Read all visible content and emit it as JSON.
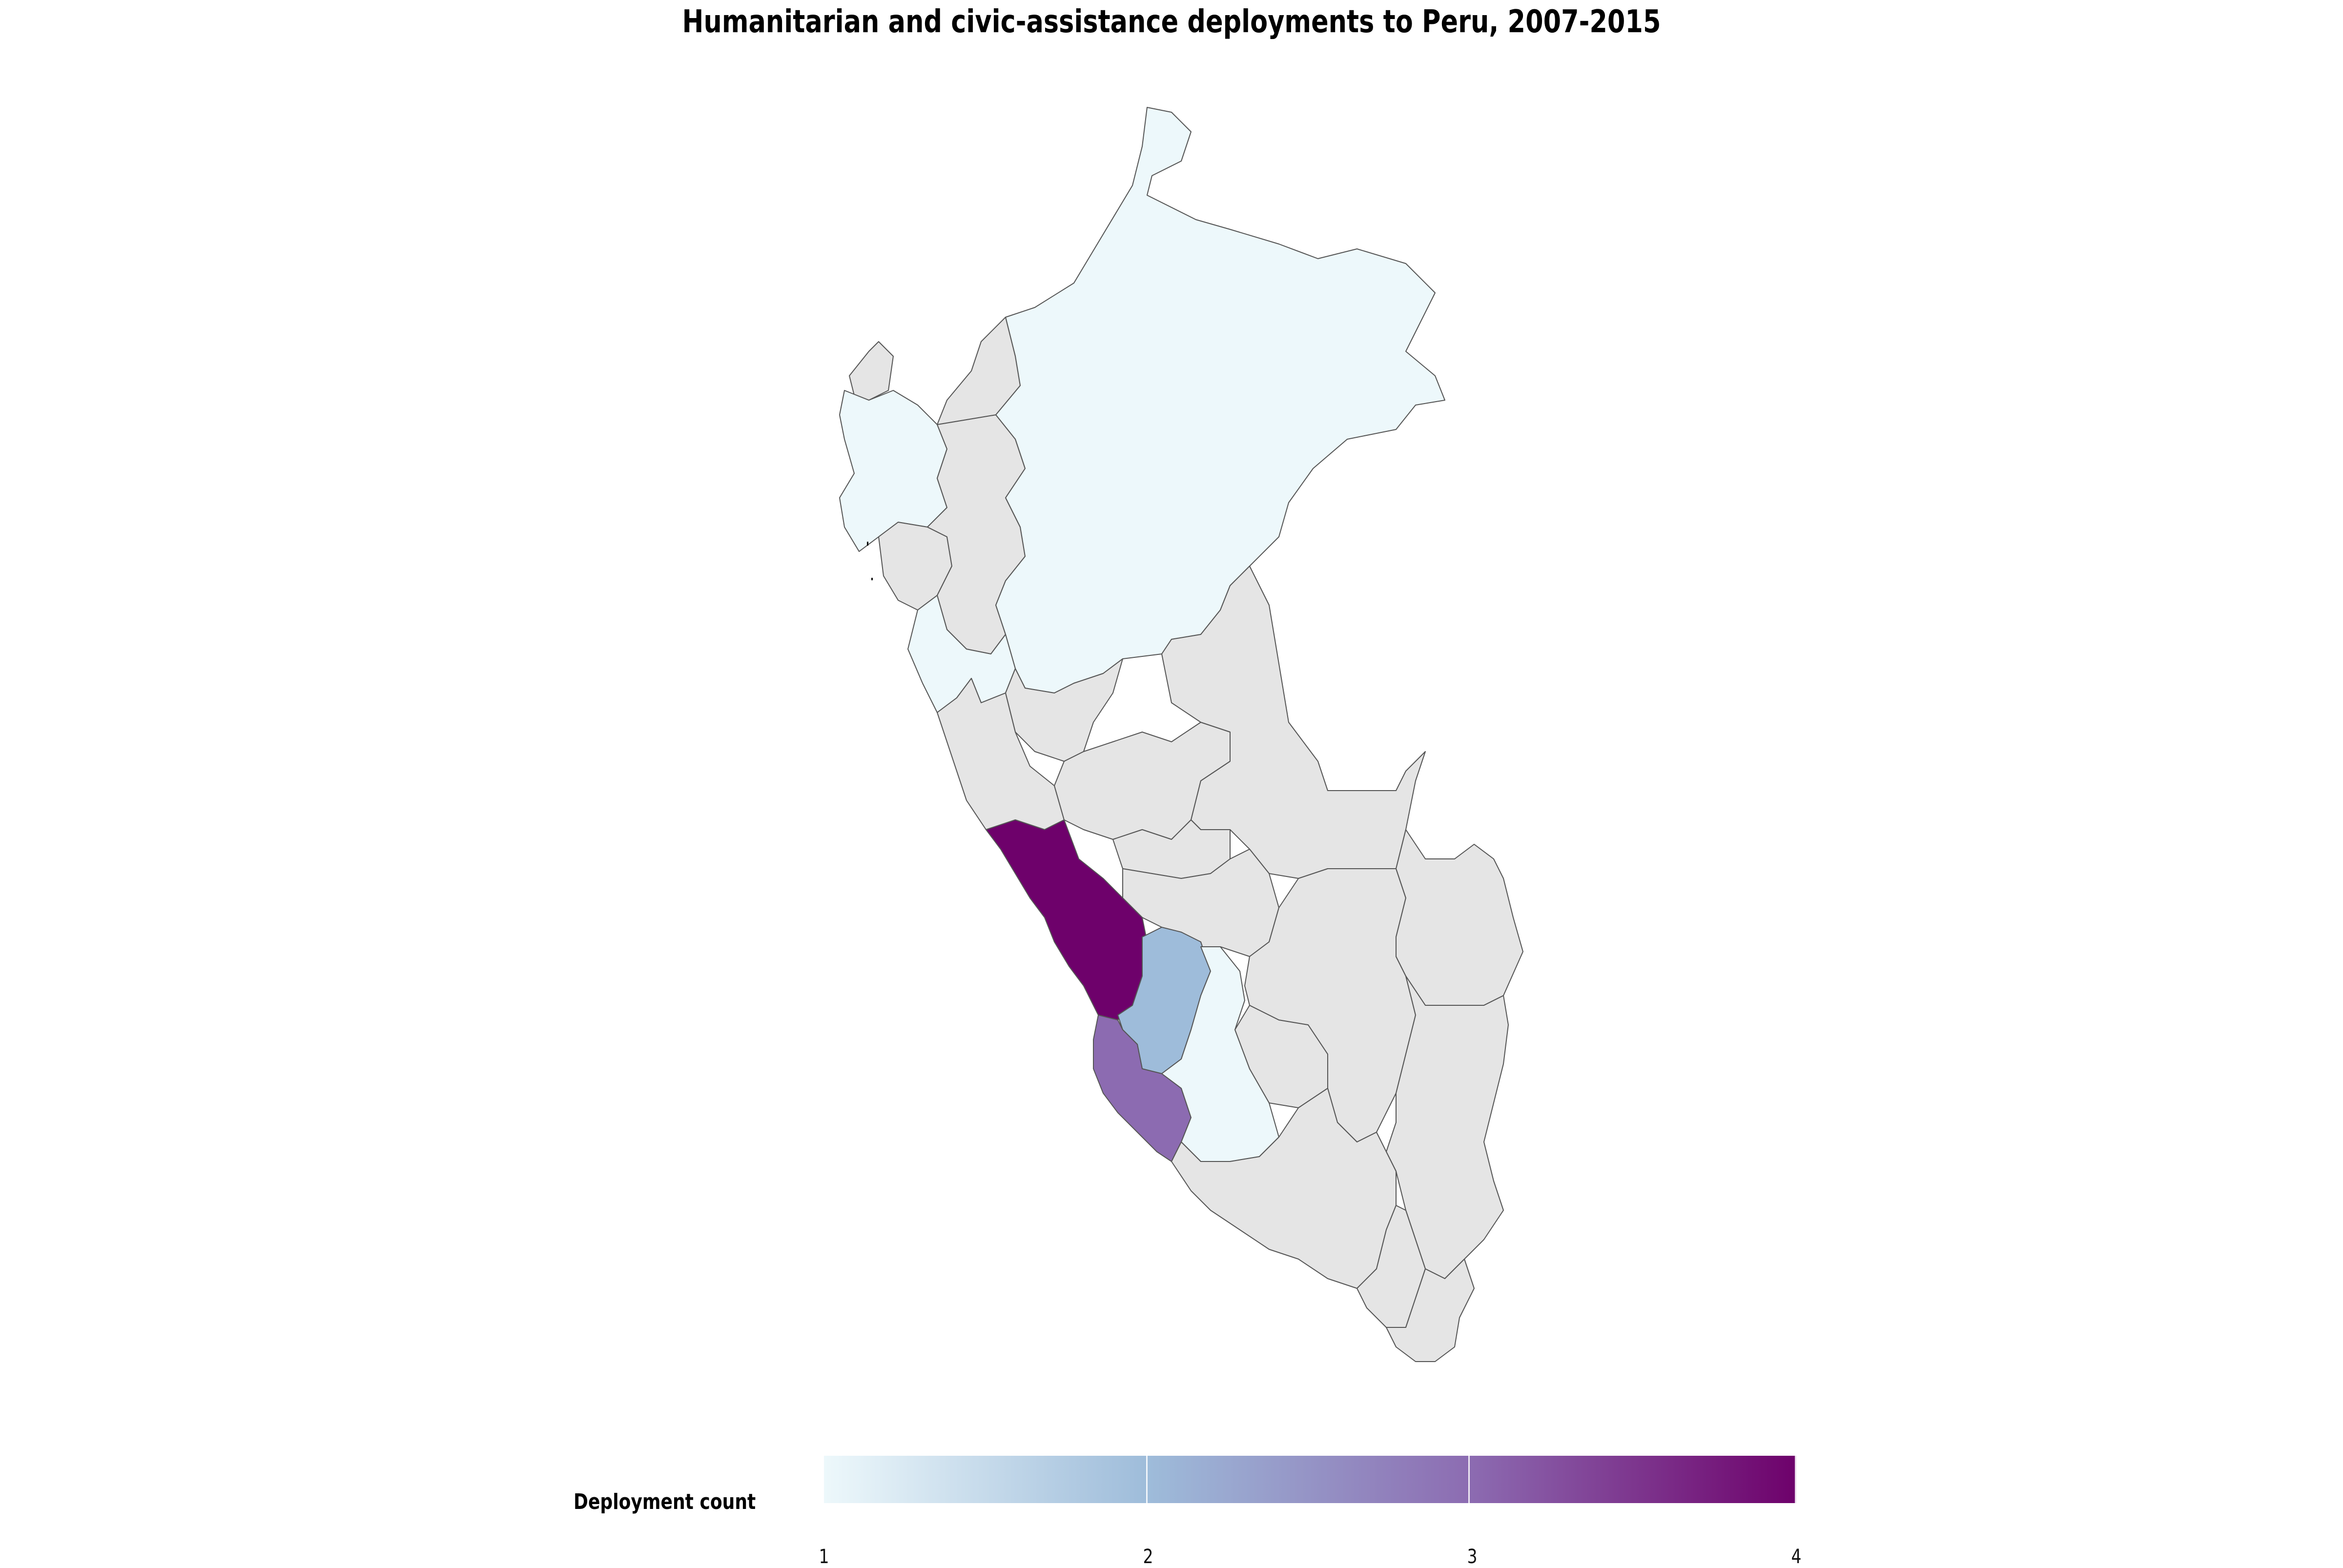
{
  "title": "Humanitarian and civic-assistance deployments to Peru, 2007-2015",
  "legend": {
    "title": "Deployment count",
    "min": 1,
    "max": 4,
    "ticks": [
      "1",
      "2",
      "3",
      "4"
    ],
    "colors": [
      "#edf8fb",
      "#9ebcda",
      "#8c6bb1",
      "#6e016b"
    ]
  },
  "colors": {
    "no_data": "#e5e5e5",
    "border": "#555555",
    "background": "#ffffff"
  },
  "chart_data": {
    "type": "choropleth",
    "region": "Peru",
    "value_field": "Deployment count",
    "scale_range": [
      1,
      4
    ],
    "regions": [
      {
        "id": "loreto",
        "value": 1
      },
      {
        "id": "piura",
        "value": 1
      },
      {
        "id": "la-libertad",
        "value": 1
      },
      {
        "id": "lima",
        "value": 4
      },
      {
        "id": "huancavelica",
        "value": 2
      },
      {
        "id": "ica",
        "value": 3
      },
      {
        "id": "ayacucho",
        "value": 1
      },
      {
        "id": "tumbes",
        "value": null
      },
      {
        "id": "amazonas",
        "value": null
      },
      {
        "id": "cajamarca",
        "value": null
      },
      {
        "id": "lambayeque",
        "value": null
      },
      {
        "id": "san-martin",
        "value": null
      },
      {
        "id": "ancash",
        "value": null
      },
      {
        "id": "huanuco",
        "value": null
      },
      {
        "id": "ucayali",
        "value": null
      },
      {
        "id": "pasco",
        "value": null
      },
      {
        "id": "junin",
        "value": null
      },
      {
        "id": "madre-de-dios",
        "value": null
      },
      {
        "id": "cusco",
        "value": null
      },
      {
        "id": "apurimac",
        "value": null
      },
      {
        "id": "puno",
        "value": null
      },
      {
        "id": "arequipa",
        "value": null
      },
      {
        "id": "moquegua",
        "value": null
      },
      {
        "id": "tacna",
        "value": null
      }
    ]
  }
}
